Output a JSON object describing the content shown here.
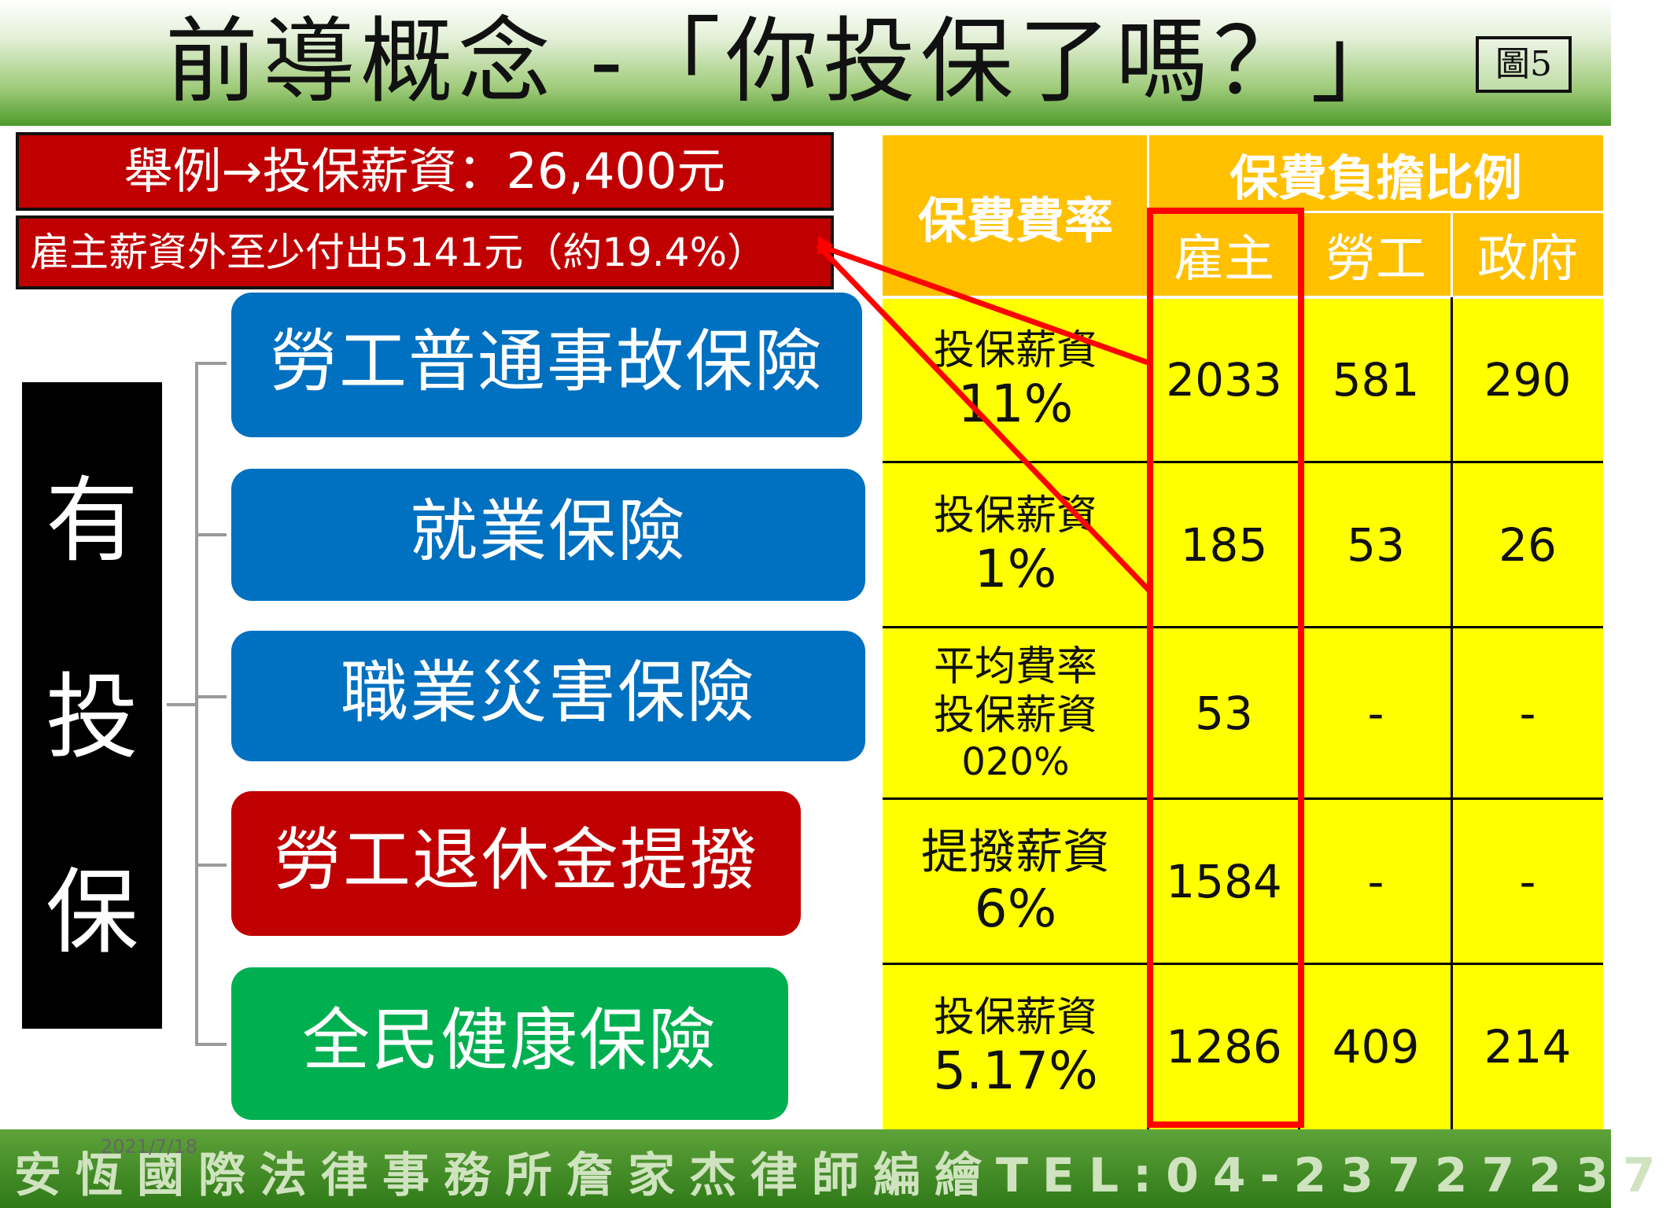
{
  "header": {
    "title": "前導概念 -「你投保了嗎？」",
    "figure_badge": "圖5"
  },
  "banners": {
    "example": "舉例→投保薪資：26,400元",
    "employer_cost": "雇主薪資外至少付出5141元（約19.4%）"
  },
  "side_label": [
    "有",
    "投",
    "保"
  ],
  "insurance_items": [
    {
      "label": "勞工普通事故保險",
      "color": "#0070c0"
    },
    {
      "label": "就業保險",
      "color": "#0070c0"
    },
    {
      "label": "職業災害保險",
      "color": "#0070c0"
    },
    {
      "label": "勞工退休金提撥",
      "color": "#c00000"
    },
    {
      "label": "全民健康保險",
      "color": "#00b050"
    }
  ],
  "table": {
    "col_rate": "保費費率",
    "col_share": "保費負擔比例",
    "sub_headers": [
      "雇主",
      "勞工",
      "政府"
    ],
    "rows": [
      {
        "rate_line1": "投保薪資",
        "rate_line2": "",
        "rate_big": "11%",
        "employer": "2033",
        "worker": "581",
        "government": "290"
      },
      {
        "rate_line1": "投保薪資",
        "rate_line2": "",
        "rate_big": "1%",
        "employer": "185",
        "worker": "53",
        "government": "26"
      },
      {
        "rate_line1": "平均費率",
        "rate_line2": "投保薪資",
        "rate_big": "020%",
        "employer": "53",
        "worker": "-",
        "government": "-"
      },
      {
        "rate_line1": "提撥薪資",
        "rate_line2": "",
        "rate_big": "6%",
        "employer": "1584",
        "worker": "-",
        "government": "-"
      },
      {
        "rate_line1": "投保薪資",
        "rate_line2": "",
        "rate_big": "5.17%",
        "employer": "1286",
        "worker": "409",
        "government": "214"
      }
    ]
  },
  "footer": {
    "text": "安恆國際法律事務所詹家杰律師編繪TEL:04-23727237",
    "date": "2021/7/18"
  },
  "colors": {
    "highlight": "#ff0000",
    "header_orange": "#ffc000",
    "cell_yellow": "#ffff00"
  }
}
